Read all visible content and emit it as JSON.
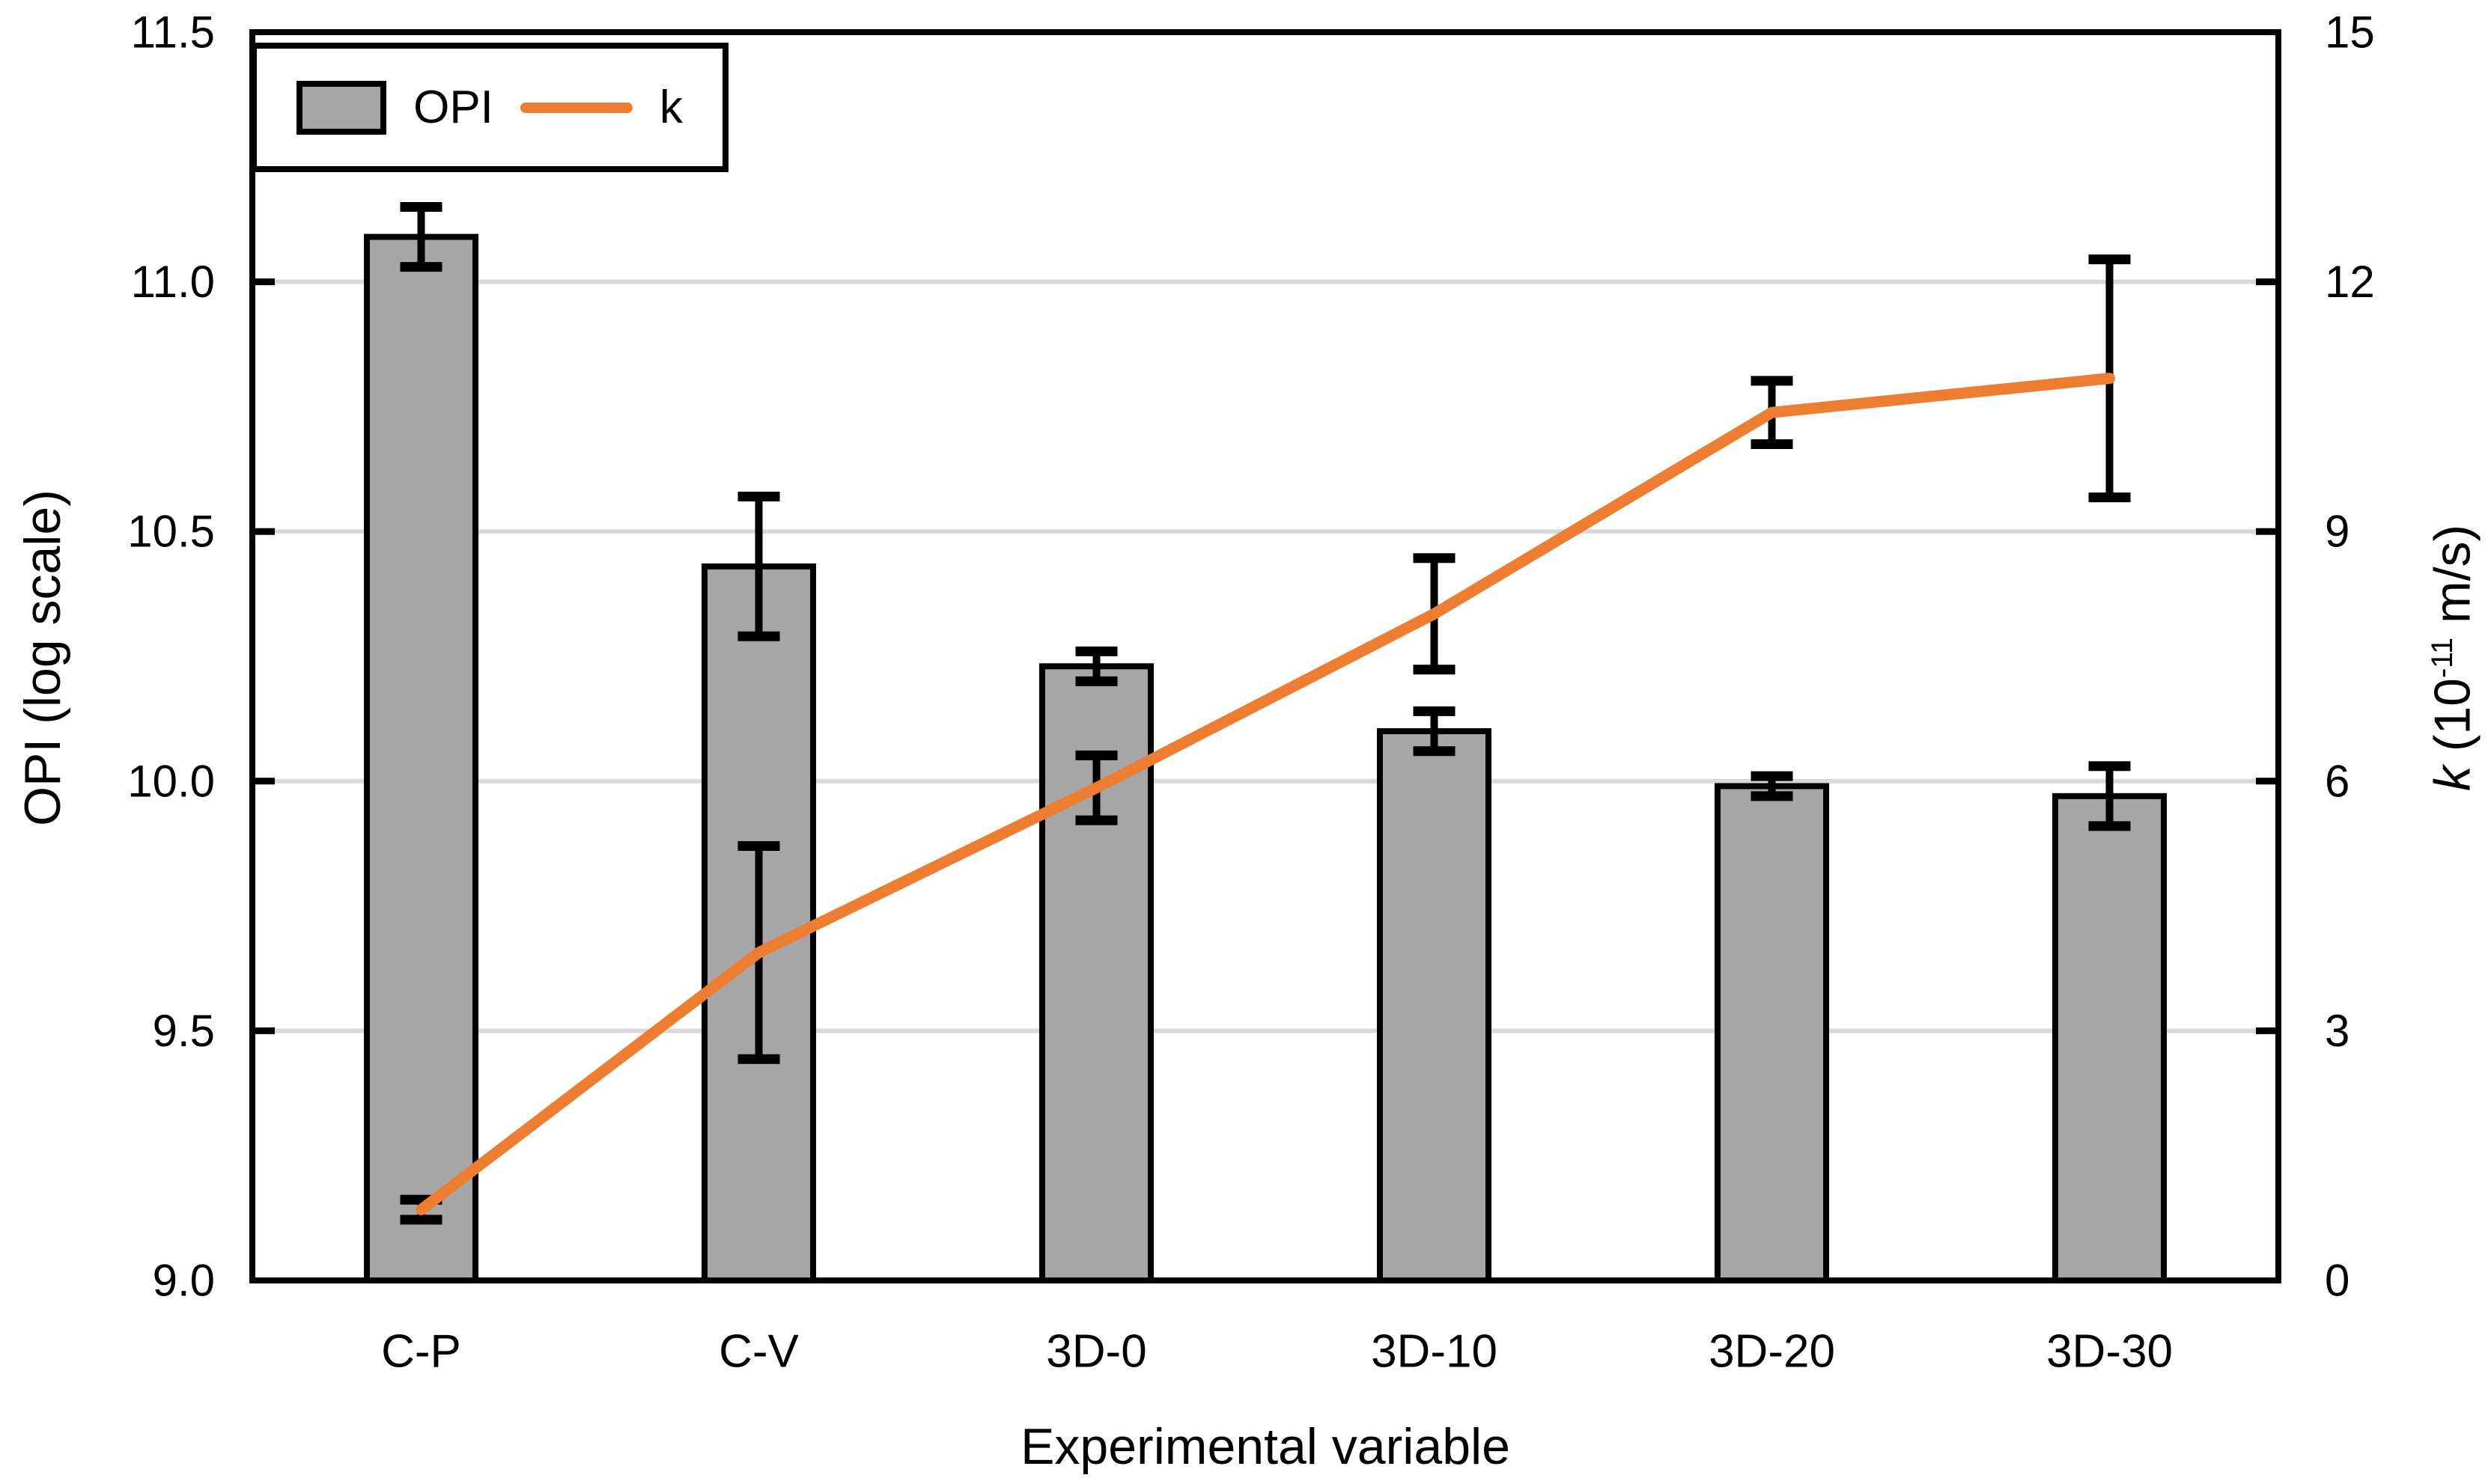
{
  "chart_data": {
    "type": "combo-bar-line",
    "title": "",
    "categories": [
      "C-P",
      "C-V",
      "3D-0",
      "3D-10",
      "3D-20",
      "3D-30"
    ],
    "x_axis": {
      "label": "Experimental variable"
    },
    "left_axis": {
      "label": "OPI (log scale)",
      "min": 9.0,
      "max": 11.5,
      "tick_values": [
        9.0,
        9.5,
        10.0,
        10.5,
        11.0,
        11.5
      ],
      "tick_labels": [
        "9.0",
        "9.5",
        "10.0",
        "10.5",
        "11.0",
        "11.5"
      ]
    },
    "right_axis": {
      "label_main": "k",
      "label_prefix": " (10",
      "label_superscript": "-11",
      "label_suffix": " m/s)",
      "min": 0,
      "max": 15,
      "tick_values": [
        0,
        3,
        6,
        9,
        12,
        15
      ],
      "tick_labels": [
        "0",
        "3",
        "6",
        "9",
        "12",
        "15"
      ]
    },
    "series": [
      {
        "name": "OPI",
        "type": "bar",
        "axis": "left",
        "fill_color": "#A6A6A6",
        "border_color": "#000000",
        "values": [
          11.09,
          10.43,
          10.23,
          10.1,
          9.99,
          9.97
        ],
        "error_bars": [
          0.06,
          0.14,
          0.03,
          0.04,
          0.02,
          0.06
        ]
      },
      {
        "name": "k",
        "type": "line",
        "axis": "right",
        "line_color": "#ED7D31",
        "values": [
          0.85,
          3.94,
          5.92,
          8.01,
          10.43,
          10.84
        ],
        "error_bars": [
          0.12,
          1.28,
          0.39,
          0.67,
          0.38,
          1.43
        ]
      }
    ],
    "grid": {
      "horizontal": true,
      "color": "#D9D9D9"
    },
    "error_bar_color": "#000000",
    "legend": {
      "position": "top-left-inside",
      "items": [
        "OPI",
        "k"
      ]
    }
  }
}
